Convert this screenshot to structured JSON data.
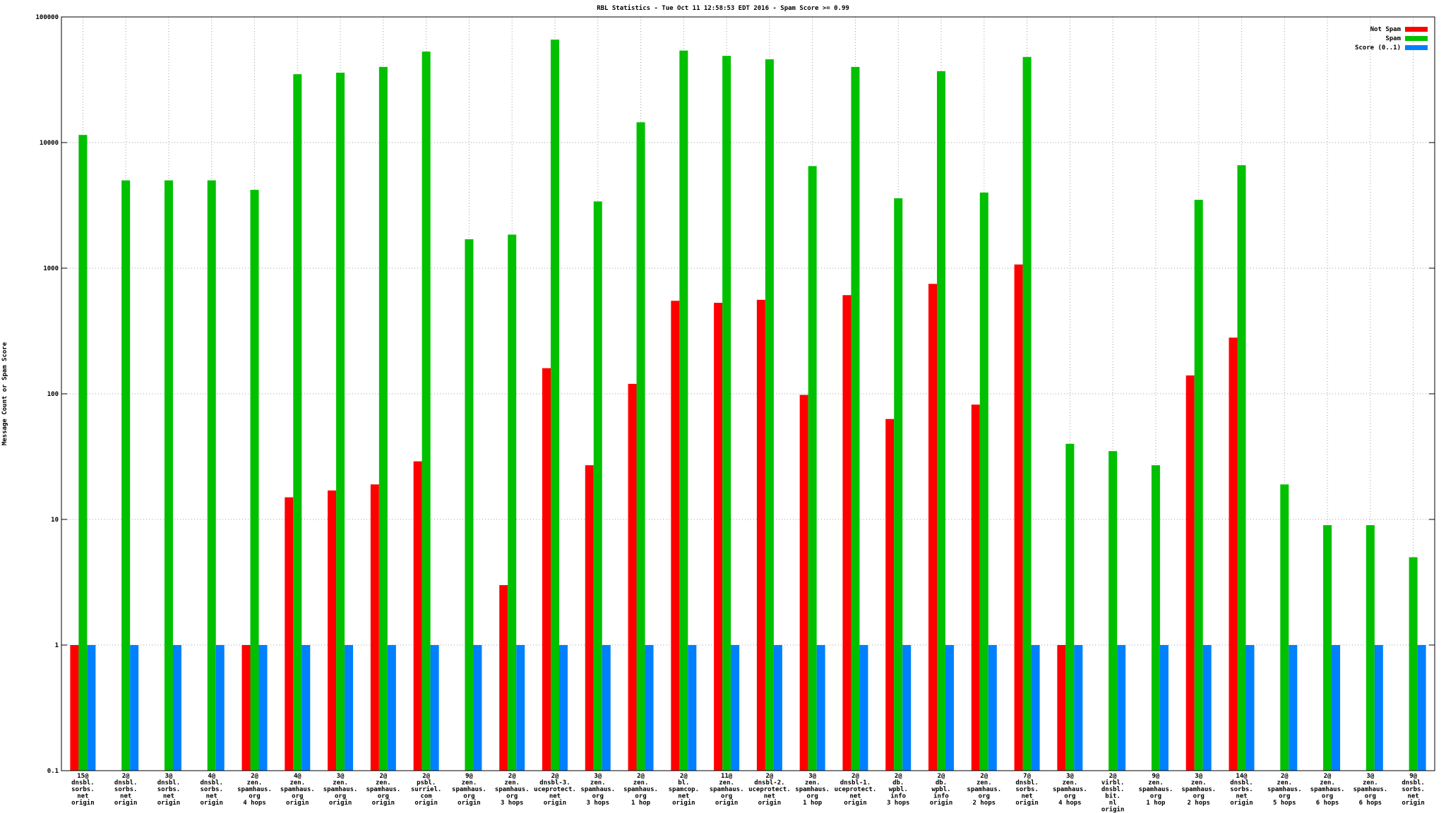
{
  "chart_data": {
    "type": "bar",
    "log_scale": true,
    "grid": true,
    "legend_position": "top-right",
    "title": "RBL Statistics - Tue Oct 11 12:58:53 EDT 2016 - Spam Score >= 0.99",
    "y_label": "Message Count or Spam Score",
    "ylim": [
      0.1,
      100000
    ],
    "yticks": [
      0.1,
      1,
      10,
      100,
      1000,
      10000,
      100000
    ],
    "categories": [
      [
        "15@",
        "dnsbl.",
        "sorbs.",
        "net",
        "origin"
      ],
      [
        "2@",
        "dnsbl.",
        "sorbs.",
        "net",
        "origin"
      ],
      [
        "3@",
        "dnsbl.",
        "sorbs.",
        "net",
        "origin"
      ],
      [
        "4@",
        "dnsbl.",
        "sorbs.",
        "net",
        "origin"
      ],
      [
        "2@",
        "zen.",
        "spamhaus.",
        "org",
        "4 hops"
      ],
      [
        "4@",
        "zen.",
        "spamhaus.",
        "org",
        "origin"
      ],
      [
        "3@",
        "zen.",
        "spamhaus.",
        "org",
        "origin"
      ],
      [
        "2@",
        "zen.",
        "spamhaus.",
        "org",
        "origin"
      ],
      [
        "2@",
        "psbl.",
        "surriel.",
        "com",
        "origin"
      ],
      [
        "9@",
        "zen.",
        "spamhaus.",
        "org",
        "origin"
      ],
      [
        "2@",
        "zen.",
        "spamhaus.",
        "org",
        "3 hops"
      ],
      [
        "2@",
        "dnsbl-3.",
        "uceprotect.",
        "net",
        "origin"
      ],
      [
        "3@",
        "zen.",
        "spamhaus.",
        "org",
        "3 hops"
      ],
      [
        "2@",
        "zen.",
        "spamhaus.",
        "org",
        "1 hop"
      ],
      [
        "2@",
        "bl.",
        "spamcop.",
        "net",
        "origin"
      ],
      [
        "11@",
        "zen.",
        "spamhaus.",
        "org",
        "origin"
      ],
      [
        "2@",
        "dnsbl-2.",
        "uceprotect.",
        "net",
        "origin"
      ],
      [
        "3@",
        "zen.",
        "spamhaus.",
        "org",
        "1 hop"
      ],
      [
        "2@",
        "dnsbl-1.",
        "uceprotect.",
        "net",
        "origin"
      ],
      [
        "2@",
        "db.",
        "wpbl.",
        "info",
        "3 hops"
      ],
      [
        "2@",
        "db.",
        "wpbl.",
        "info",
        "origin"
      ],
      [
        "2@",
        "zen.",
        "spamhaus.",
        "org",
        "2 hops"
      ],
      [
        "7@",
        "dnsbl.",
        "sorbs.",
        "net",
        "origin"
      ],
      [
        "3@",
        "zen.",
        "spamhaus.",
        "org",
        "4 hops"
      ],
      [
        "2@",
        "virbl.",
        "dnsbl.",
        "bit.",
        "nl",
        "origin"
      ],
      [
        "9@",
        "zen.",
        "spamhaus.",
        "org",
        "1 hop"
      ],
      [
        "3@",
        "zen.",
        "spamhaus.",
        "org",
        "2 hops"
      ],
      [
        "14@",
        "dnsbl.",
        "sorbs.",
        "net",
        "origin"
      ],
      [
        "2@",
        "zen.",
        "spamhaus.",
        "org",
        "5 hops"
      ],
      [
        "2@",
        "zen.",
        "spamhaus.",
        "org",
        "6 hops"
      ],
      [
        "3@",
        "zen.",
        "spamhaus.",
        "org",
        "6 hops"
      ],
      [
        "9@",
        "dnsbl.",
        "sorbs.",
        "net",
        "origin"
      ]
    ],
    "series": [
      {
        "name": "Not Spam",
        "color": "#ff0000",
        "values": [
          1,
          null,
          null,
          null,
          1,
          15,
          17,
          19,
          29,
          null,
          3,
          160,
          27,
          120,
          550,
          530,
          560,
          98,
          610,
          63,
          750,
          82,
          1070,
          1,
          null,
          null,
          140,
          280,
          null,
          null,
          null,
          null
        ]
      },
      {
        "name": "Spam",
        "color": "#00c000",
        "values": [
          11500,
          5000,
          5000,
          5000,
          4200,
          35000,
          36000,
          40000,
          53000,
          1700,
          1850,
          66000,
          3400,
          14500,
          54000,
          49000,
          46000,
          6500,
          40000,
          3600,
          37000,
          4000,
          48000,
          40,
          35,
          27,
          3500,
          6600,
          19,
          9,
          9,
          5
        ]
      },
      {
        "name": "Score (0..1)",
        "color": "#0080ff",
        "values": [
          1,
          1,
          1,
          1,
          1,
          1,
          1,
          1,
          1,
          1,
          1,
          1,
          1,
          1,
          1,
          1,
          1,
          1,
          1,
          1,
          1,
          1,
          1,
          1,
          1,
          1,
          1,
          1,
          1,
          1,
          1,
          1
        ]
      }
    ]
  }
}
